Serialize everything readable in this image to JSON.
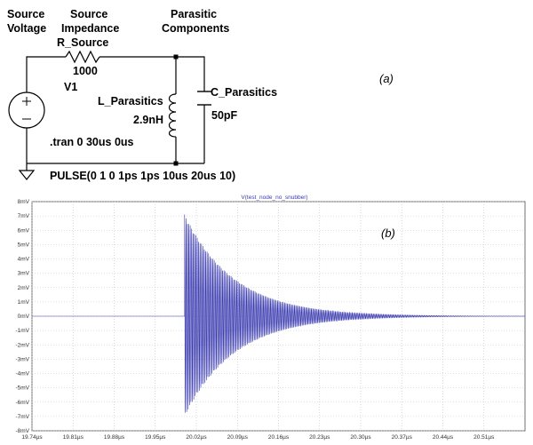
{
  "schematic": {
    "source_voltage_label": [
      "Source",
      "Voltage"
    ],
    "source_impedance_label": [
      "Source",
      "Impedance"
    ],
    "r_source_name": "R_Source",
    "r_source_value": "1000",
    "parasitic_label": [
      "Parasitic",
      "Components"
    ],
    "v1_name": "V1",
    "l_name": "L_Parasitics",
    "l_value": "2.9nH",
    "c_name": "C_Parasitics",
    "c_value": "50pF",
    "tran_directive": ".tran 0 30us 0us",
    "pulse_directive": "PULSE(0 1 0 1ps 1ps 10us 20us 10)",
    "panel_label": "(a)"
  },
  "plot": {
    "panel_label": "(b)",
    "colors": {
      "trace": "#3b3bb0",
      "grid": "#c0c0c0",
      "frame": "#707070"
    }
  },
  "chart_data": {
    "type": "line",
    "title": "V(test_node_no_snubber)",
    "x_ticks": [
      "19.74µs",
      "19.81µs",
      "19.88µs",
      "19.95µs",
      "20.02µs",
      "20.09µs",
      "20.16µs",
      "20.23µs",
      "20.30µs",
      "20.37µs",
      "20.44µs",
      "20.51µs"
    ],
    "y_ticks": [
      "8mV",
      "7mV",
      "6mV",
      "5mV",
      "4mV",
      "3mV",
      "2mV",
      "1mV",
      "0mV",
      "-1mV",
      "-2mV",
      "-3mV",
      "-4mV",
      "-5mV",
      "-6mV",
      "-7mV",
      "-8mV"
    ],
    "xlim": [
      19.74,
      20.58
    ],
    "ylim": [
      -8,
      8
    ],
    "x_unit": "µs",
    "y_unit": "mV",
    "series": [
      {
        "signal": "damped_sine",
        "baseline_mV": 0,
        "start_us": 20.0,
        "peak_mV": 7.1,
        "peak_negative_mV": -7.0,
        "decay_tau_us": 0.085,
        "period_us": 0.0024
      }
    ]
  }
}
